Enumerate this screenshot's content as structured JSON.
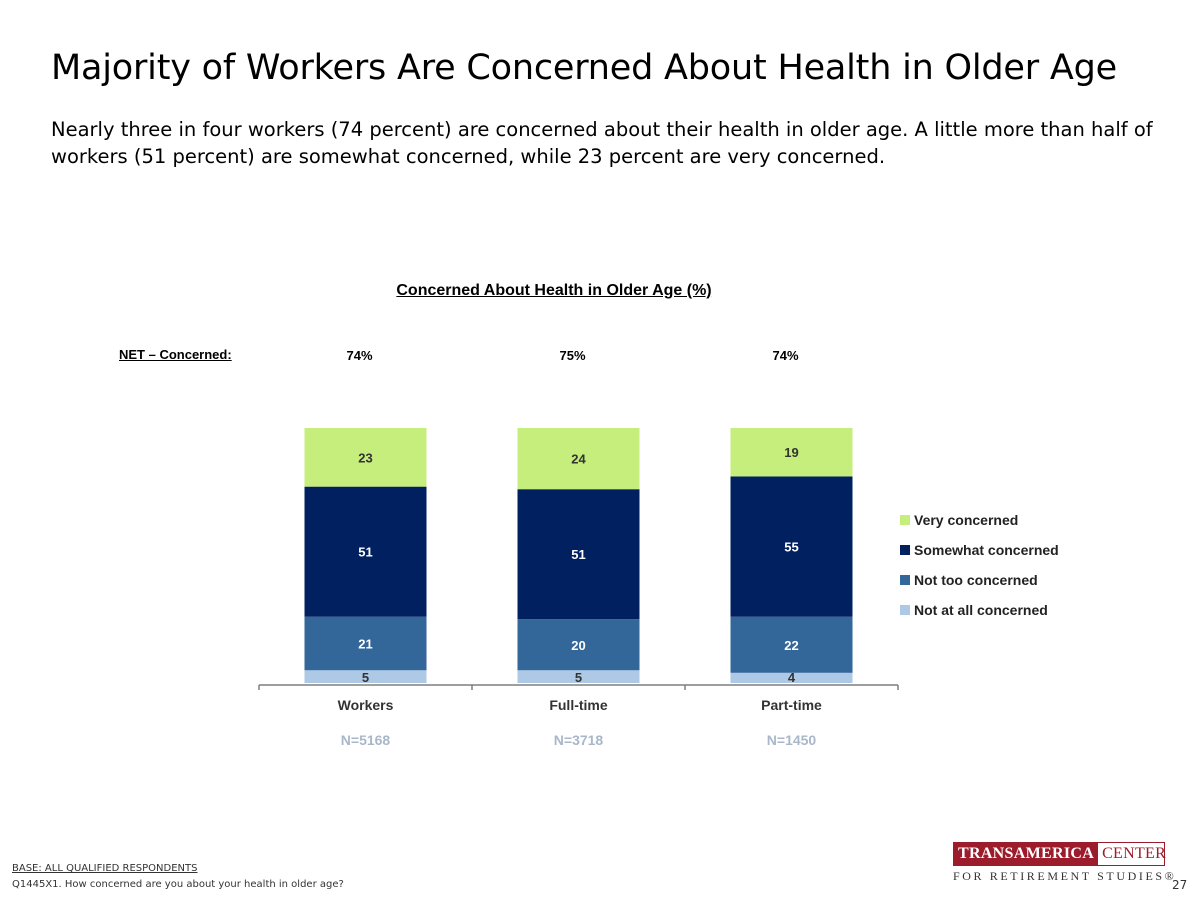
{
  "slide": {
    "title": "Majority of Workers Are Concerned About Health in Older Age",
    "subtitle": "Nearly three in four workers (74 percent) are concerned about their health in older age. A little more than half of workers (51 percent) are somewhat concerned, while 23 percent are very concerned.",
    "page_number": "27"
  },
  "footer": {
    "base": "BASE:  ALL QUALIFIED RESPONDENTS",
    "question": "Q1445X1. How concerned are you about your health in older age?"
  },
  "logo": {
    "line1_a": "TRANSAMERICA",
    "line1_b": "CENTER",
    "line2": "FOR RETIREMENT STUDIES®"
  },
  "net_label": "NET – Concerned:",
  "chart_data": {
    "type": "bar",
    "stacked": true,
    "title": "Concerned About Health in Older Age (%)",
    "categories": [
      "Workers",
      "Full-time",
      "Part-time"
    ],
    "sample_sizes": [
      "N=5168",
      "N=3718",
      "N=1450"
    ],
    "net_concerned": [
      "74%",
      "75%",
      "74%"
    ],
    "series": [
      {
        "name": "Not at all concerned",
        "values": [
          5,
          5,
          4
        ],
        "color": "#aec9e6"
      },
      {
        "name": "Not too concerned",
        "values": [
          21,
          20,
          22
        ],
        "color": "#336699"
      },
      {
        "name": "Somewhat concerned",
        "values": [
          51,
          51,
          55
        ],
        "color": "#002060"
      },
      {
        "name": "Very concerned",
        "values": [
          23,
          24,
          19
        ],
        "color": "#c5ee7d"
      }
    ],
    "legend_order": [
      "Very concerned",
      "Somewhat concerned",
      "Not too concerned",
      "Not at all concerned"
    ],
    "legend_position": "right",
    "grid": false
  }
}
